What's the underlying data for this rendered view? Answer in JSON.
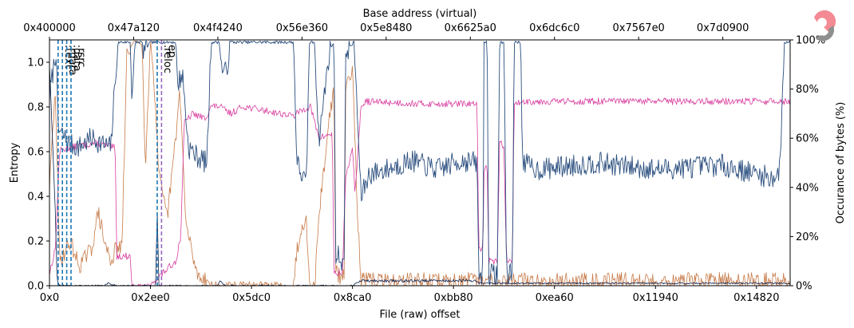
{
  "chart_data": {
    "type": "line",
    "top_axis_label": "Base address (virtual)",
    "top_ticks": [
      "0x400000",
      "0x47a120",
      "0x4f4240",
      "0x56e360",
      "0x5e8480",
      "0x6625a0",
      "0x6dc6c0",
      "0x7567e0",
      "0x7d0900"
    ],
    "xlabel": "File (raw) offset",
    "x_ticks": [
      "0x0",
      "0x2ee0",
      "0x5dc0",
      "0x8ca0",
      "0xbb80",
      "0xea60",
      "0x11940",
      "0x14820"
    ],
    "ylabel": "Entropy",
    "y_ticks": [
      "0.0",
      "0.2",
      "0.4",
      "0.6",
      "0.8",
      "1.0"
    ],
    "ylim": [
      0,
      1.1
    ],
    "y2label": "Occurance of bytes (%)",
    "y2_ticks": [
      "0%",
      "20%",
      "40%",
      "60%",
      "80%",
      "100%"
    ],
    "ylim2": [
      0,
      100
    ],
    "sections": [
      {
        "name": ".text",
        "offset": 1024,
        "style": "dashed",
        "color": "#1f77b4"
      },
      {
        "name": ".rdata",
        "offset": 1536,
        "style": "dashed",
        "color": "#1f77b4"
      },
      {
        "name": ".data",
        "offset": 2048,
        "style": "dashed",
        "color": "#1f77b4"
      },
      {
        "name": ".rsrc",
        "offset": 2560,
        "style": "dashed",
        "color": "#1f77b4"
      },
      {
        "name": ".reloc",
        "offset": 12800,
        "style": "dashed",
        "color": "#1f77b4"
      },
      {
        "name": "ep",
        "offset": 13312,
        "style": "dashed",
        "color": "#9467bd"
      }
    ],
    "colors": {
      "entropy": "#2a4e7e",
      "zeros": "#0a1f4c",
      "printable": "#d83fa0",
      "high": "#c77b4a"
    },
    "series": [
      {
        "key": "entropy",
        "axis": "left",
        "x_end": 88000,
        "knots": [
          [
            0,
            0.85
          ],
          [
            800,
            1.06
          ],
          [
            1000,
            0.7
          ],
          [
            2500,
            0.63
          ],
          [
            3500,
            0.62
          ],
          [
            5000,
            0.66
          ],
          [
            6500,
            0.63
          ],
          [
            7300,
            0.62
          ],
          [
            7900,
            0.98
          ],
          [
            8300,
            1.09
          ],
          [
            9600,
            1.09
          ],
          [
            9800,
            0.85
          ],
          [
            10200,
            1.09
          ],
          [
            11000,
            1.09
          ],
          [
            11200,
            1.05
          ],
          [
            12000,
            1.09
          ],
          [
            15000,
            1.09
          ],
          [
            15200,
            0.9
          ],
          [
            15800,
            0.95
          ],
          [
            16500,
            0.62
          ],
          [
            17500,
            0.58
          ],
          [
            18700,
            0.55
          ],
          [
            19200,
            1.09
          ],
          [
            20200,
            1.09
          ],
          [
            20400,
            0.98
          ],
          [
            21000,
            0.95
          ],
          [
            21500,
            1.09
          ],
          [
            23000,
            1.09
          ],
          [
            23200,
            1.09
          ],
          [
            29000,
            1.09
          ],
          [
            29400,
            0.55
          ],
          [
            30500,
            0.45
          ],
          [
            30900,
            1.09
          ],
          [
            31500,
            1.09
          ],
          [
            32000,
            0.65
          ],
          [
            33300,
            1.06
          ],
          [
            33800,
            1.09
          ],
          [
            34000,
            0.15
          ],
          [
            35000,
            0.1
          ],
          [
            35200,
            1.05
          ],
          [
            36200,
            1.09
          ],
          [
            36600,
            0.75
          ],
          [
            37000,
            0.4
          ],
          [
            38000,
            0.5
          ],
          [
            40000,
            0.52
          ],
          [
            43000,
            0.56
          ],
          [
            46000,
            0.52
          ],
          [
            49000,
            0.56
          ],
          [
            50800,
            0.55
          ],
          [
            51000,
            0.05
          ],
          [
            51500,
            0.05
          ],
          [
            51600,
            1.09
          ],
          [
            52000,
            1.09
          ],
          [
            52200,
            0.05
          ],
          [
            53200,
            0.05
          ],
          [
            53500,
            1.09
          ],
          [
            54000,
            1.09
          ],
          [
            54300,
            0.05
          ],
          [
            55000,
            0.05
          ],
          [
            55200,
            1.09
          ],
          [
            56000,
            1.09
          ],
          [
            56200,
            0.55
          ],
          [
            58000,
            0.52
          ],
          [
            65000,
            0.55
          ],
          [
            72000,
            0.52
          ],
          [
            80000,
            0.54
          ],
          [
            86000,
            0.48
          ],
          [
            86800,
            0.52
          ],
          [
            87300,
            1.09
          ],
          [
            88000,
            1.09
          ]
        ]
      },
      {
        "key": "zeros",
        "axis": "right",
        "x_end": 88000,
        "knots": [
          [
            0,
            90
          ],
          [
            700,
            30
          ],
          [
            900,
            2
          ],
          [
            1200,
            0
          ],
          [
            6500,
            0
          ],
          [
            7000,
            1
          ],
          [
            8000,
            0
          ],
          [
            12600,
            0
          ],
          [
            12800,
            30
          ],
          [
            13000,
            0
          ],
          [
            20000,
            0
          ],
          [
            20200,
            2
          ],
          [
            21000,
            0
          ],
          [
            36000,
            0
          ],
          [
            37000,
            2
          ],
          [
            50800,
            2
          ],
          [
            51000,
            1
          ],
          [
            56000,
            1
          ],
          [
            88000,
            1
          ]
        ]
      },
      {
        "key": "printable",
        "axis": "right",
        "x_end": 88000,
        "knots": [
          [
            0,
            5
          ],
          [
            700,
            15
          ],
          [
            1200,
            55
          ],
          [
            3500,
            57
          ],
          [
            5500,
            58
          ],
          [
            7800,
            56
          ],
          [
            8000,
            12
          ],
          [
            9600,
            12
          ],
          [
            9800,
            0
          ],
          [
            12000,
            0
          ],
          [
            12200,
            1
          ],
          [
            15000,
            10
          ],
          [
            15600,
            20
          ],
          [
            16000,
            66
          ],
          [
            17000,
            70
          ],
          [
            18500,
            68
          ],
          [
            19200,
            73
          ],
          [
            20200,
            73
          ],
          [
            21500,
            70
          ],
          [
            23000,
            73
          ],
          [
            29000,
            69
          ],
          [
            29800,
            71
          ],
          [
            31000,
            73
          ],
          [
            32000,
            60
          ],
          [
            33600,
            62
          ],
          [
            33800,
            5
          ],
          [
            34800,
            5
          ],
          [
            35200,
            45
          ],
          [
            36000,
            55
          ],
          [
            36300,
            38
          ],
          [
            37000,
            72
          ],
          [
            37500,
            75
          ],
          [
            44000,
            74
          ],
          [
            50800,
            74
          ],
          [
            51000,
            15
          ],
          [
            51500,
            15
          ],
          [
            51600,
            45
          ],
          [
            52000,
            50
          ],
          [
            52200,
            10
          ],
          [
            53200,
            10
          ],
          [
            53500,
            60
          ],
          [
            54000,
            55
          ],
          [
            54300,
            10
          ],
          [
            55000,
            10
          ],
          [
            55200,
            73
          ],
          [
            56000,
            75
          ],
          [
            56600,
            75
          ],
          [
            88000,
            75
          ]
        ]
      },
      {
        "key": "high",
        "axis": "right",
        "x_end": 88000,
        "knots": [
          [
            0,
            40
          ],
          [
            700,
            80
          ],
          [
            1200,
            10
          ],
          [
            2500,
            18
          ],
          [
            3500,
            8
          ],
          [
            5000,
            15
          ],
          [
            5800,
            30
          ],
          [
            6500,
            18
          ],
          [
            7300,
            10
          ],
          [
            7900,
            15
          ],
          [
            8600,
            15
          ],
          [
            9200,
            95
          ],
          [
            10200,
            100
          ],
          [
            11000,
            98
          ],
          [
            11400,
            50
          ],
          [
            12000,
            100
          ],
          [
            12400,
            85
          ],
          [
            13000,
            45
          ],
          [
            13500,
            35
          ],
          [
            14000,
            28
          ],
          [
            15000,
            60
          ],
          [
            15500,
            80
          ],
          [
            16200,
            25
          ],
          [
            17500,
            5
          ],
          [
            18700,
            2
          ],
          [
            19200,
            0
          ],
          [
            23000,
            0
          ],
          [
            29000,
            0
          ],
          [
            29400,
            15
          ],
          [
            30500,
            30
          ],
          [
            30900,
            0
          ],
          [
            31500,
            0
          ],
          [
            32000,
            28
          ],
          [
            33300,
            70
          ],
          [
            33800,
            80
          ],
          [
            34000,
            5
          ],
          [
            35000,
            3
          ],
          [
            35200,
            80
          ],
          [
            36000,
            90
          ],
          [
            36600,
            30
          ],
          [
            37000,
            2
          ],
          [
            38000,
            2
          ],
          [
            88000,
            2
          ]
        ]
      }
    ]
  }
}
